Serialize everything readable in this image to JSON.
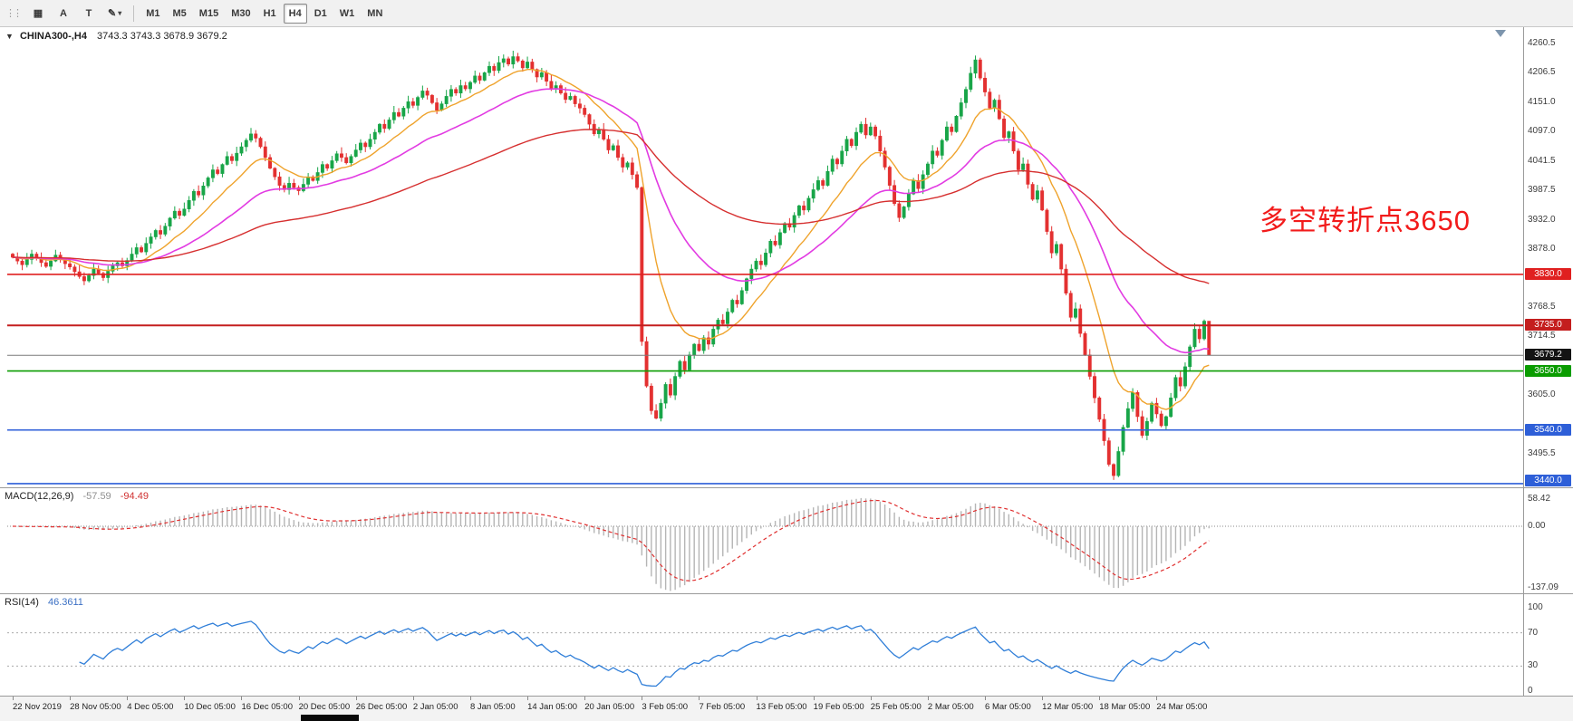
{
  "toolbar": {
    "tools": [
      {
        "id": "grid",
        "label": ""
      },
      {
        "id": "text",
        "label": "A"
      },
      {
        "id": "textbox",
        "label": "T"
      },
      {
        "id": "draw",
        "label": ""
      }
    ],
    "timeframes": [
      "M1",
      "M5",
      "M15",
      "M30",
      "H1",
      "H4",
      "D1",
      "W1",
      "MN"
    ],
    "active_timeframe": "H4"
  },
  "icons": {
    "grip": "⋮⋮",
    "grid": "▦",
    "pencil": "✎",
    "caret": "▾",
    "collapse": "▼"
  },
  "header": {
    "symbol": "CHINA300-,H4",
    "ohlc": "3743.3 3743.3 3678.9 3679.2"
  },
  "annotation": {
    "text": "多空转折点3650"
  },
  "indicators": {
    "macd": {
      "name": "MACD(12,26,9)",
      "main_value": "-57.59",
      "signal_value": "-94.49"
    },
    "rsi": {
      "name": "RSI(14)",
      "value": "46.3611"
    }
  },
  "colors": {
    "up": "#18a548",
    "down": "#e33030",
    "wick_up": "#18a548",
    "wick_down": "#e33030",
    "macd_hist": "#b5b5b5",
    "macd_signal": "#e03030",
    "rsi_line": "#2f7ed8",
    "current_price_line": "#7a7a7a",
    "current_price_badge": "#141414",
    "annotation": "#f21b1b"
  },
  "chart_data": {
    "type": "candlestick",
    "symbol": "CHINA300-",
    "timeframe": "H4",
    "bars_per_label": 12,
    "x_labels": [
      "22 Nov 2019",
      "28 Nov 05:00",
      "4 Dec 05:00",
      "10 Dec 05:00",
      "16 Dec 05:00",
      "20 Dec 05:00",
      "26 Dec 05:00",
      "2 Jan 05:00",
      "8 Jan 05:00",
      "14 Jan 05:00",
      "20 Jan 05:00",
      "3 Feb 05:00",
      "7 Feb 05:00",
      "13 Feb 05:00",
      "19 Feb 05:00",
      "25 Feb 05:00",
      "2 Mar 05:00",
      "6 Mar 05:00",
      "12 Mar 05:00",
      "18 Mar 05:00",
      "24 Mar 05:00"
    ],
    "closes": [
      3862,
      3855,
      3848,
      3858,
      3868,
      3860,
      3852,
      3845,
      3855,
      3866,
      3858,
      3850,
      3844,
      3835,
      3826,
      3818,
      3828,
      3840,
      3832,
      3824,
      3836,
      3846,
      3852,
      3846,
      3856,
      3868,
      3880,
      3872,
      3888,
      3900,
      3912,
      3905,
      3920,
      3935,
      3948,
      3940,
      3952,
      3968,
      3985,
      3978,
      3995,
      4010,
      4025,
      4018,
      4035,
      4050,
      4042,
      4056,
      4068,
      4080,
      4092,
      4084,
      4068,
      4048,
      4028,
      4012,
      3996,
      3988,
      4000,
      3992,
      3986,
      3998,
      4012,
      4005,
      4020,
      4035,
      4028,
      4042,
      4055,
      4048,
      4038,
      4050,
      4062,
      4075,
      4068,
      4082,
      4095,
      4110,
      4102,
      4118,
      4132,
      4125,
      4140,
      4152,
      4145,
      4160,
      4172,
      4164,
      4150,
      4136,
      4148,
      4162,
      4175,
      4168,
      4182,
      4176,
      4188,
      4200,
      4192,
      4206,
      4218,
      4210,
      4225,
      4232,
      4222,
      4236,
      4228,
      4215,
      4226,
      4212,
      4198,
      4206,
      4190,
      4176,
      4182,
      4168,
      4156,
      4162,
      4148,
      4140,
      4128,
      4110,
      4092,
      4100,
      4082,
      4062,
      4070,
      4048,
      4030,
      4038,
      4016,
      3992,
      3705,
      3622,
      3576,
      3562,
      3590,
      3625,
      3605,
      3640,
      3668,
      3652,
      3680,
      3700,
      3688,
      3712,
      3700,
      3728,
      3745,
      3738,
      3760,
      3782,
      3775,
      3800,
      3822,
      3840,
      3855,
      3848,
      3870,
      3892,
      3885,
      3908,
      3925,
      3918,
      3940,
      3958,
      3950,
      3972,
      3988,
      4005,
      3996,
      4022,
      4045,
      4036,
      4060,
      4082,
      4070,
      4095,
      4110,
      4090,
      4105,
      4088,
      4060,
      4030,
      3996,
      3962,
      3936,
      3956,
      3980,
      4005,
      3990,
      4016,
      4036,
      4060,
      4052,
      4080,
      4105,
      4096,
      4125,
      4150,
      4175,
      4205,
      4230,
      4196,
      4170,
      4140,
      4155,
      4120,
      4085,
      4096,
      4060,
      4025,
      4036,
      3998,
      3970,
      3986,
      3950,
      3910,
      3870,
      3886,
      3840,
      3795,
      3750,
      3766,
      3720,
      3680,
      3640,
      3600,
      3560,
      3520,
      3476,
      3455,
      3500,
      3545,
      3580,
      3610,
      3565,
      3530,
      3556,
      3590,
      3570,
      3548,
      3565,
      3600,
      3638,
      3622,
      3658,
      3695,
      3728,
      3710,
      3743,
      3679.2
    ],
    "last_bar": {
      "open": 3743.3,
      "high": 3743.3,
      "low": 3678.9,
      "close": 3679.2
    },
    "price_axis_ticks": [
      "4260.5",
      "4206.5",
      "4151.0",
      "4097.0",
      "4041.5",
      "3987.5",
      "3932.0",
      "3878.0",
      "3768.5",
      "3714.5",
      "3605.0",
      "3495.5"
    ],
    "levels": [
      {
        "label": "3830.0",
        "value": 3830.0,
        "color": "#e02020",
        "width": 1.6
      },
      {
        "label": "3735.0",
        "value": 3735.0,
        "color": "#c41e1e",
        "width": 2
      },
      {
        "label": "3650.0",
        "value": 3650.0,
        "color": "#0a9c00",
        "width": 1.6
      },
      {
        "label": "3540.0",
        "value": 3540.0,
        "color": "#2e5fd8",
        "width": 1.6
      },
      {
        "label": "3440.0",
        "value": 3440.0,
        "color": "#2e5fd8",
        "width": 1.6
      }
    ],
    "current_price": {
      "label": "3679.2",
      "value": 3679.2
    },
    "moving_averages": [
      {
        "name": "ma-fast-orange",
        "period": 13,
        "color": "#efa32c",
        "width": 1.4
      },
      {
        "name": "ma-mid-magenta",
        "period": 34,
        "color": "#e23be2",
        "width": 1.6
      },
      {
        "name": "ma-slow-red",
        "period": 89,
        "color": "#d62f2f",
        "width": 1.4
      }
    ],
    "macd": {
      "fast": 12,
      "slow": 26,
      "signal": 9,
      "axis": [
        "58.42",
        "0.00",
        "-137.09"
      ]
    },
    "rsi": {
      "period": 14,
      "levels": [
        70,
        30
      ],
      "axis": [
        "100",
        "70",
        "30",
        "0"
      ]
    }
  }
}
